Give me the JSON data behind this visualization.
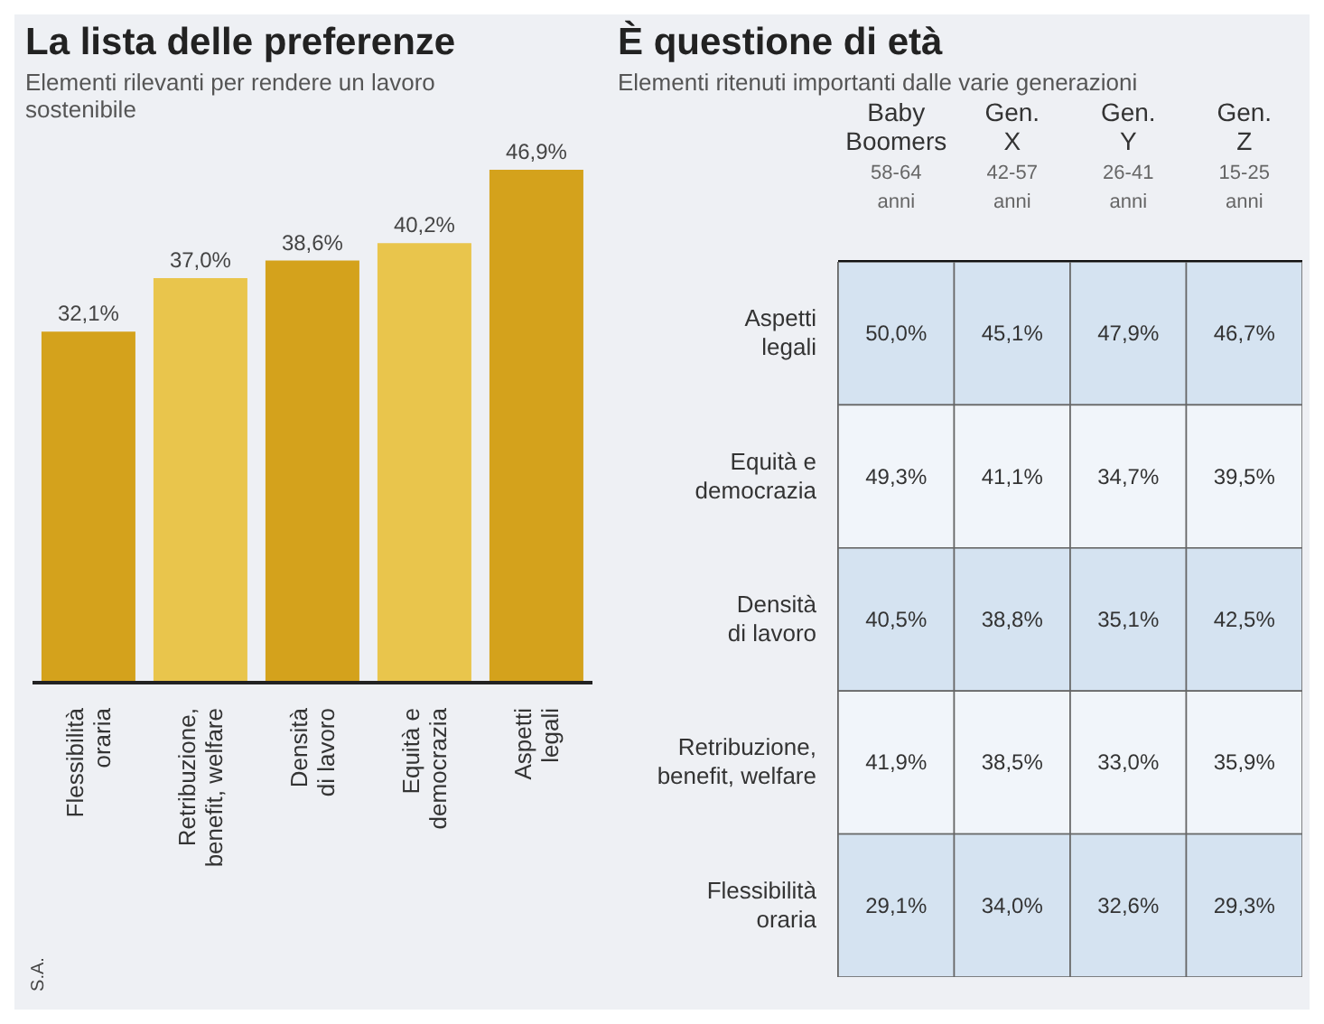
{
  "chart_data": [
    {
      "type": "bar",
      "title": "La lista delle preferenze",
      "subtitle": "Elementi rilevanti per rendere un lavoro sostenibile",
      "categories": [
        "Flessibilità oraria",
        "Retribuzione, benefit, welfare",
        "Densità di lavoro",
        "Equità e democrazia",
        "Aspetti legali"
      ],
      "values": [
        32.1,
        37.0,
        38.6,
        40.2,
        46.9
      ],
      "colors": [
        "#d4a21c",
        "#e9c54c",
        "#d4a21c",
        "#e9c54c",
        "#d4a21c"
      ],
      "value_labels": [
        "32,1%",
        "37,0%",
        "38,6%",
        "40,2%",
        "46,9%"
      ],
      "annotations": [
        "S.A."
      ]
    },
    {
      "type": "heatmap",
      "title": "È questione di età",
      "subtitle": "Elementi ritenuti importanti dalle varie generazioni",
      "categories": [
        "Baby Boomers\n58-64 anni",
        "Gen. X\n42-57 anni",
        "Gen. Y\n26-41 anni",
        "Gen. Z\n15-25 anni"
      ],
      "y_categories": [
        "Aspetti legali",
        "Equità e democrazia",
        "Densità di lavoro",
        "Retribuzione, benefit, welfare",
        "Flessibilità oraria"
      ],
      "cells": [
        [
          50.0,
          45.1,
          47.9,
          46.7
        ],
        [
          49.3,
          41.1,
          34.7,
          39.5
        ],
        [
          40.5,
          38.8,
          35.1,
          42.5
        ],
        [
          41.9,
          38.5,
          33.0,
          35.9
        ],
        [
          29.1,
          34.0,
          32.6,
          29.3
        ]
      ],
      "cell_labels": [
        [
          "50,0%",
          "45,1%",
          "47,9%",
          "46,7%"
        ],
        [
          "49,3%",
          "41,1%",
          "34,7%",
          "39,5%"
        ],
        [
          "40,5%",
          "38,8%",
          "35,1%",
          "42,5%"
        ],
        [
          "41,9%",
          "38,5%",
          "33,0%",
          "35,9%"
        ],
        [
          "29,1%",
          "34,0%",
          "32,6%",
          "29,3%"
        ]
      ]
    }
  ]
}
